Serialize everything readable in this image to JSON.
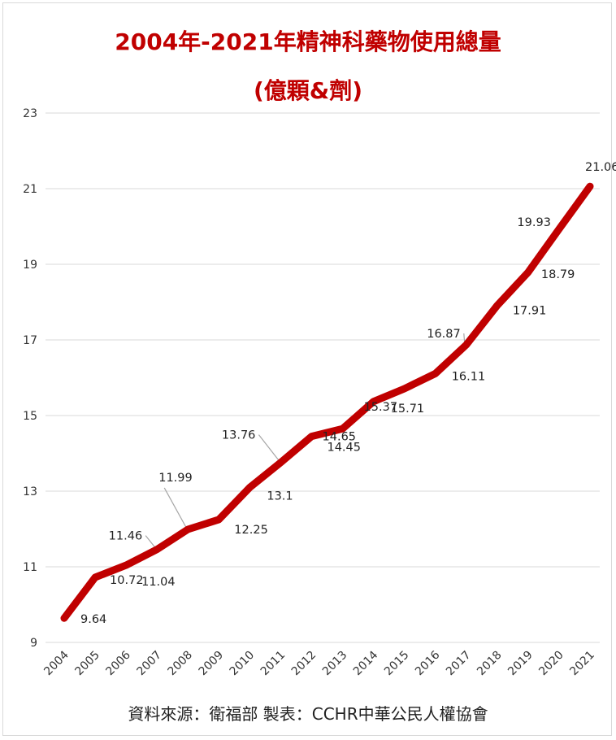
{
  "title_line1": "2004年-2021年精神科藥物使用總量",
  "title_line2": "(億顆&劑)",
  "source": "資料來源：衛福部 製表：CCHR中華公民人權協會",
  "colors": {
    "line": "#c00000",
    "title": "#c00000",
    "grid": "#d9d9d9"
  },
  "chart_data": {
    "type": "line",
    "title": "2004年-2021年精神科藥物使用總量 (億顆&劑)",
    "xlabel": "",
    "ylabel": "",
    "x": [
      "2004",
      "2005",
      "2006",
      "2007",
      "2008",
      "2009",
      "2010",
      "2011",
      "2012",
      "2013",
      "2014",
      "2015",
      "2016",
      "2017",
      "2018",
      "2019",
      "2020",
      "2021"
    ],
    "series": [
      {
        "values": [
          9.64,
          10.72,
          11.04,
          11.46,
          11.99,
          12.25,
          13.1,
          13.76,
          14.45,
          14.65,
          15.37,
          15.71,
          16.11,
          16.87,
          17.91,
          18.79,
          19.93,
          21.06
        ]
      }
    ],
    "data_labels": [
      "9.64",
      "10.72",
      "11.04",
      "11.46",
      "11.99",
      "12.25",
      "13.1",
      "13.76",
      "14.45",
      "14.65",
      "15.37",
      "15.71",
      "16.11",
      "16.87",
      "17.91",
      "18.79",
      "19.93",
      "21.06"
    ],
    "y_ticks": [
      "9",
      "11",
      "13",
      "15",
      "17",
      "19",
      "21",
      "23"
    ],
    "ylim": [
      9,
      23
    ],
    "grid": true,
    "legend": "none"
  }
}
